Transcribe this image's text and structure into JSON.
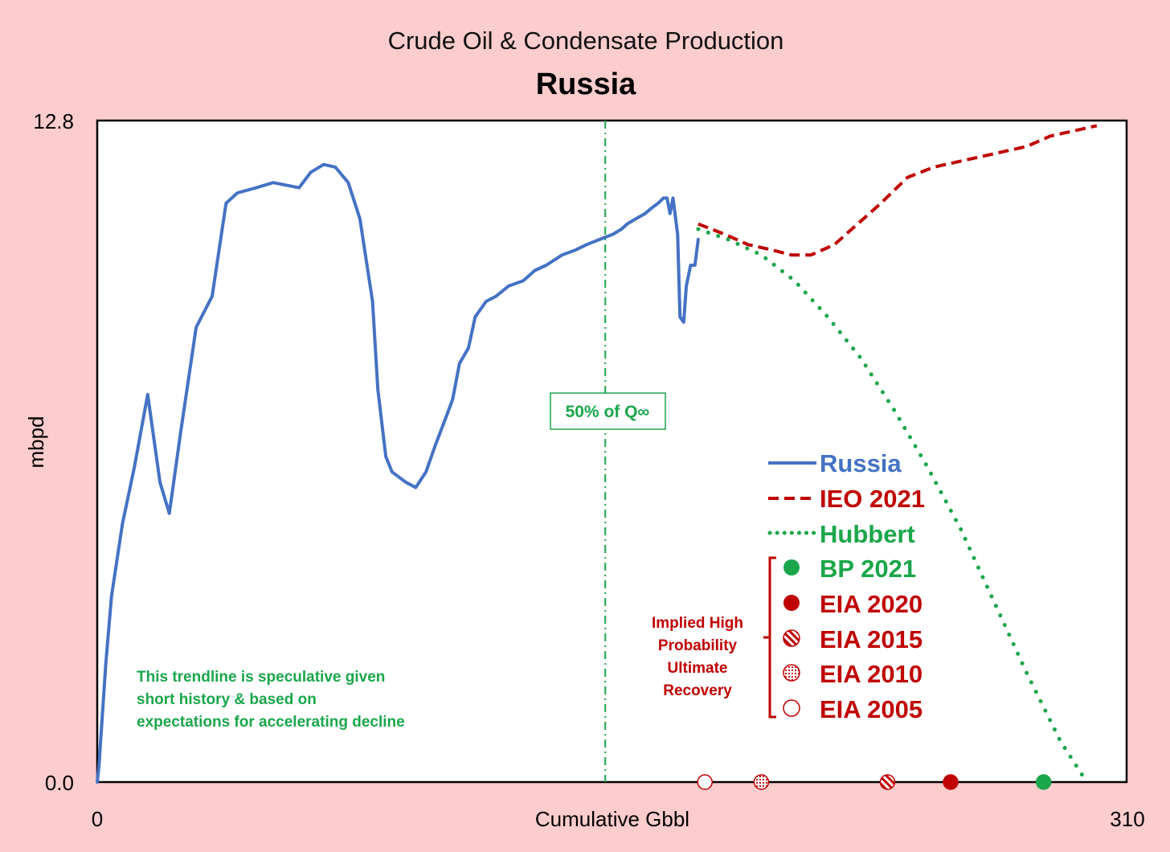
{
  "chart_data": {
    "type": "line",
    "title": "Crude Oil & Condensate Production",
    "subtitle": "Russia",
    "xlabel": "Cumulative Gbbl",
    "ylabel": "mbpd",
    "xlim": [
      0,
      310
    ],
    "ylim": [
      0.0,
      12.8
    ],
    "x_ticks": [
      "0",
      "310"
    ],
    "y_ticks": [
      "0.0",
      "12.8"
    ],
    "grid": false,
    "legend_position": "right-center",
    "colors": {
      "russia": "#4472c4",
      "ieo": "#c00000",
      "hubbert": "#1aa64a",
      "bp": "#1aa64a",
      "eia": "#c00000"
    },
    "series": [
      {
        "name": "Russia",
        "style": "solid",
        "color": "#4472c4",
        "points": [
          [
            0,
            0.0
          ],
          [
            0.5,
            0.3
          ],
          [
            2.6,
            2.3
          ],
          [
            4.3,
            3.6
          ],
          [
            7.6,
            5.0
          ],
          [
            11.2,
            6.1
          ],
          [
            15.2,
            7.5
          ],
          [
            18.9,
            5.8
          ],
          [
            21.7,
            5.2
          ],
          [
            25.2,
            6.8
          ],
          [
            29.8,
            8.8
          ],
          [
            34.6,
            9.4
          ],
          [
            38.8,
            11.2
          ],
          [
            42.2,
            11.4
          ],
          [
            47.9,
            11.5
          ],
          [
            53.0,
            11.6
          ],
          [
            60.8,
            11.5
          ],
          [
            64.3,
            11.8
          ],
          [
            68.2,
            11.95
          ],
          [
            71.7,
            11.9
          ],
          [
            75.6,
            11.6
          ],
          [
            79.1,
            10.9
          ],
          [
            82.9,
            9.3
          ],
          [
            84.5,
            7.6
          ],
          [
            86.9,
            6.3
          ],
          [
            88.8,
            6.0
          ],
          [
            93.0,
            5.8
          ],
          [
            95.9,
            5.7
          ],
          [
            99.0,
            6.0
          ],
          [
            101.7,
            6.5
          ],
          [
            104.7,
            7.0
          ],
          [
            107.0,
            7.4
          ],
          [
            109.1,
            8.1
          ],
          [
            111.8,
            8.4
          ],
          [
            113.8,
            9.0
          ],
          [
            117.1,
            9.3
          ],
          [
            120.1,
            9.4
          ],
          [
            123.9,
            9.6
          ],
          [
            128.3,
            9.7
          ],
          [
            131.8,
            9.9
          ],
          [
            135.2,
            10.0
          ],
          [
            140.0,
            10.2
          ],
          [
            144.2,
            10.3
          ],
          [
            147.4,
            10.4
          ],
          [
            151.3,
            10.5
          ],
          [
            155.3,
            10.6
          ],
          [
            157.9,
            10.7
          ],
          [
            159.6,
            10.8
          ],
          [
            162.2,
            10.9
          ],
          [
            165.0,
            11.0
          ],
          [
            166.8,
            11.1
          ],
          [
            168.9,
            11.2
          ],
          [
            170.5,
            11.3
          ],
          [
            171.6,
            11.3
          ],
          [
            172.5,
            11.0
          ],
          [
            173.4,
            11.3
          ],
          [
            174.8,
            10.6
          ],
          [
            175.5,
            9.0
          ],
          [
            176.6,
            8.9
          ],
          [
            177.4,
            9.6
          ],
          [
            178.7,
            10.0
          ],
          [
            180.0,
            10.0
          ],
          [
            181.0,
            10.5
          ]
        ]
      },
      {
        "name": "IEO 2021",
        "style": "dashed",
        "color": "#c00000",
        "points": [
          [
            181,
            10.8
          ],
          [
            189,
            10.6
          ],
          [
            196,
            10.4
          ],
          [
            203,
            10.3
          ],
          [
            209,
            10.2
          ],
          [
            215,
            10.2
          ],
          [
            222,
            10.4
          ],
          [
            229,
            10.8
          ],
          [
            236,
            11.2
          ],
          [
            244,
            11.7
          ],
          [
            252,
            11.9
          ],
          [
            259,
            12.0
          ],
          [
            266,
            12.1
          ],
          [
            273,
            12.2
          ],
          [
            280,
            12.3
          ],
          [
            287,
            12.5
          ],
          [
            294,
            12.6
          ],
          [
            301,
            12.7
          ]
        ]
      },
      {
        "name": "Hubbert",
        "style": "dotted",
        "color": "#1aa64a",
        "points": [
          [
            181,
            10.7
          ],
          [
            190,
            10.5
          ],
          [
            200,
            10.2
          ],
          [
            210,
            9.7
          ],
          [
            220,
            9.0
          ],
          [
            230,
            8.2
          ],
          [
            240,
            7.2
          ],
          [
            250,
            6.1
          ],
          [
            260,
            4.9
          ],
          [
            270,
            3.5
          ],
          [
            280,
            2.1
          ],
          [
            290,
            0.8
          ],
          [
            297,
            0.1
          ]
        ]
      }
    ],
    "markers": [
      {
        "name": "BP 2021",
        "x": 285,
        "y": 0.0,
        "fill": "solid",
        "color": "#1aa64a"
      },
      {
        "name": "EIA 2020",
        "x": 257,
        "y": 0.0,
        "fill": "solid",
        "color": "#c00000"
      },
      {
        "name": "EIA 2015",
        "x": 238,
        "y": 0.0,
        "fill": "hatched",
        "color": "#c00000"
      },
      {
        "name": "EIA 2010",
        "x": 200,
        "y": 0.0,
        "fill": "dotted",
        "color": "#c00000"
      },
      {
        "name": "EIA 2005",
        "x": 183,
        "y": 0.0,
        "fill": "hollow",
        "color": "#c00000"
      }
    ],
    "vline": {
      "x": 153,
      "label": "50% of Q∞",
      "color": "#1aa64a"
    },
    "annotations": {
      "hubbert_note": [
        "This trendline is speculative given",
        "short history & based on",
        "expectations for accelerating decline"
      ],
      "bracket_note": [
        "Implied High",
        "Probability",
        "Ultimate",
        "Recovery"
      ]
    },
    "legend": [
      "Russia",
      "IEO 2021",
      "Hubbert",
      "BP 2021",
      "EIA 2020",
      "EIA 2015",
      "EIA 2010",
      "EIA 2005"
    ]
  }
}
